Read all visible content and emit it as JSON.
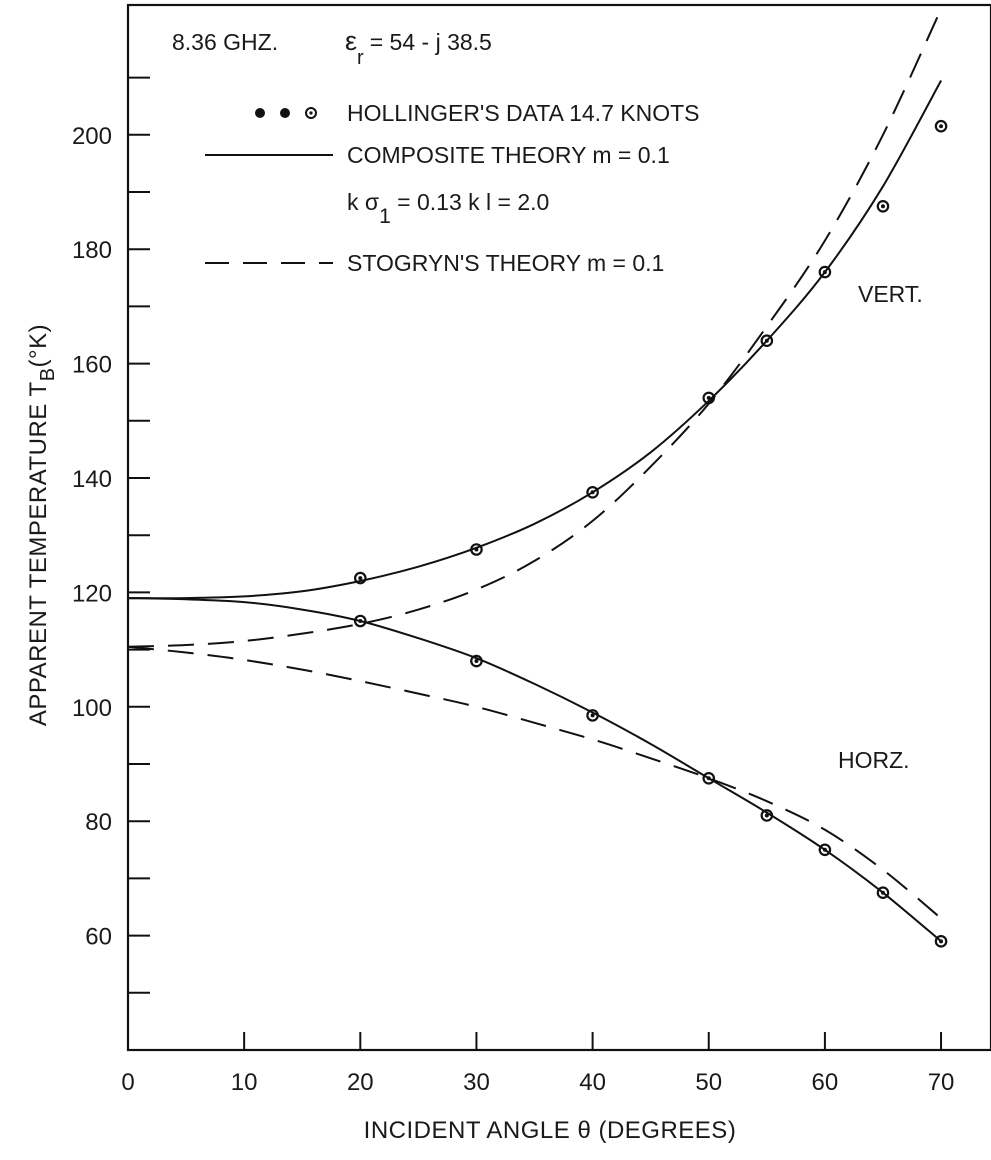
{
  "chart_data": {
    "type": "line",
    "title": "",
    "xlabel": "INCIDENT ANGLE θ (DEGREES)",
    "ylabel": "APPARENT TEMPERATURE T",
    "ylabel_sub": "B",
    "ylabel_unit": "(°K)",
    "xlim": [
      0,
      74
    ],
    "ylim": [
      40,
      222
    ],
    "x_ticks": [
      0,
      10,
      20,
      30,
      40,
      50,
      60,
      70
    ],
    "y_ticks": [
      60,
      80,
      100,
      120,
      140,
      160,
      180,
      200
    ],
    "y_minor_ticks": [
      50,
      70,
      90,
      110,
      130,
      150,
      170,
      190,
      210
    ],
    "grid": false,
    "legend_position": "top-left",
    "header": {
      "frequency": "8.36 GHZ.",
      "permittivity": "ε",
      "permittivity_sub": "r",
      "permittivity_value": "= 54 - j 38.5"
    },
    "legend": [
      {
        "marker": "points",
        "label": "HOLLINGER'S DATA  14.7 KNOTS"
      },
      {
        "marker": "solid",
        "label": "COMPOSITE THEORY  m = 0.1"
      },
      {
        "marker": "none",
        "label": "k σ",
        "sub": "1",
        "label_rest": " = 0.13    k l = 2.0"
      },
      {
        "marker": "dashed",
        "label": "STOGRYN'S THEORY  m = 0.1"
      }
    ],
    "curve_labels": {
      "vertical": "VERT.",
      "horizontal": "HORZ."
    },
    "series": [
      {
        "name": "HOLLINGER'S DATA  14.7 KNOTS",
        "style": "points",
        "points": [
          [
            20,
            122.5
          ],
          [
            30,
            127.5
          ],
          [
            40,
            137.5
          ],
          [
            50,
            154
          ],
          [
            55,
            164
          ],
          [
            60,
            176
          ],
          [
            65,
            187.5
          ],
          [
            70,
            201.5
          ],
          [
            20,
            115
          ],
          [
            30,
            108
          ],
          [
            40,
            98.5
          ],
          [
            50,
            87.5
          ],
          [
            55,
            81
          ],
          [
            60,
            75
          ],
          [
            65,
            67.5
          ],
          [
            70,
            59
          ]
        ]
      },
      {
        "name": "COMPOSITE THEORY  m = 0.1",
        "polarization": "VERT.",
        "style": "solid",
        "points": [
          [
            0,
            119
          ],
          [
            5,
            119
          ],
          [
            10,
            119.3
          ],
          [
            15,
            120.2
          ],
          [
            20,
            122
          ],
          [
            25,
            124.5
          ],
          [
            30,
            127.8
          ],
          [
            35,
            132
          ],
          [
            40,
            137.5
          ],
          [
            45,
            144.5
          ],
          [
            50,
            153.5
          ],
          [
            55,
            164
          ],
          [
            60,
            176
          ],
          [
            65,
            191
          ],
          [
            70,
            209.5
          ]
        ]
      },
      {
        "name": "COMPOSITE THEORY  m = 0.1",
        "polarization": "HORZ.",
        "style": "solid",
        "points": [
          [
            0,
            119
          ],
          [
            5,
            118.8
          ],
          [
            10,
            118.3
          ],
          [
            15,
            117
          ],
          [
            20,
            115
          ],
          [
            25,
            112
          ],
          [
            30,
            108.5
          ],
          [
            35,
            104
          ],
          [
            40,
            99
          ],
          [
            45,
            93.5
          ],
          [
            50,
            87.5
          ],
          [
            55,
            81.5
          ],
          [
            60,
            75
          ],
          [
            65,
            67.5
          ],
          [
            70,
            59
          ]
        ]
      },
      {
        "name": "STOGRYN'S THEORY  m = 0.1",
        "polarization": "VERT.",
        "style": "dashed",
        "points": [
          [
            0,
            110.5
          ],
          [
            5,
            110.8
          ],
          [
            10,
            111.5
          ],
          [
            15,
            112.8
          ],
          [
            20,
            114.5
          ],
          [
            25,
            117
          ],
          [
            30,
            120.5
          ],
          [
            35,
            125.5
          ],
          [
            40,
            132.5
          ],
          [
            45,
            142
          ],
          [
            50,
            153
          ],
          [
            55,
            166.5
          ],
          [
            60,
            181.5
          ],
          [
            65,
            200
          ],
          [
            70,
            222
          ]
        ]
      },
      {
        "name": "STOGRYN'S THEORY  m = 0.1",
        "polarization": "HORZ.",
        "style": "dashed",
        "points": [
          [
            0,
            110.5
          ],
          [
            5,
            109.5
          ],
          [
            10,
            108.2
          ],
          [
            15,
            106.5
          ],
          [
            20,
            104.5
          ],
          [
            25,
            102.3
          ],
          [
            30,
            100
          ],
          [
            35,
            97.2
          ],
          [
            40,
            94.3
          ],
          [
            45,
            91
          ],
          [
            50,
            87.5
          ],
          [
            55,
            83.5
          ],
          [
            60,
            78.5
          ],
          [
            65,
            71.5
          ],
          [
            70,
            63
          ]
        ]
      }
    ]
  }
}
